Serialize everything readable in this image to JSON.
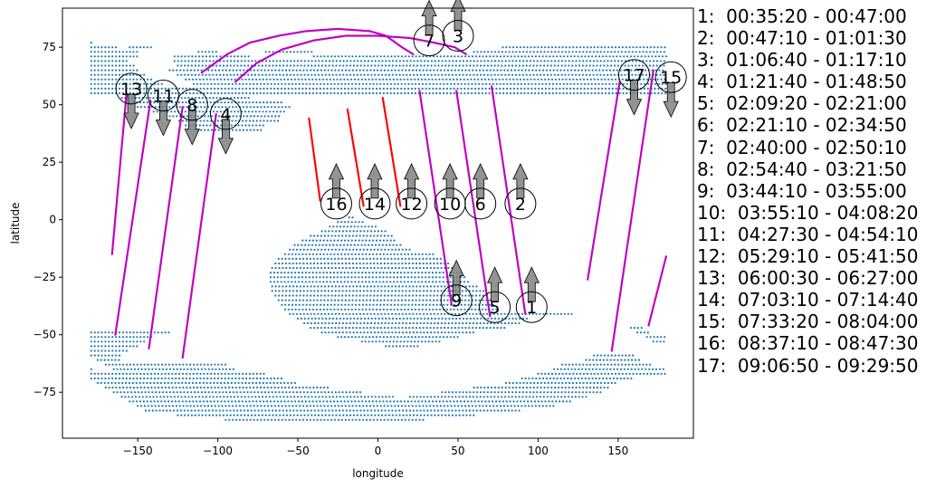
{
  "chart_data": {
    "type": "scatter",
    "xlabel": "longitude",
    "ylabel": "latitude",
    "xlim": [
      -197,
      197
    ],
    "ylim": [
      -95,
      92
    ],
    "xticks": [
      -150,
      -100,
      -50,
      0,
      50,
      100,
      150
    ],
    "yticks": [
      -75,
      -50,
      -25,
      0,
      25,
      50,
      75
    ],
    "colors": {
      "land": "#1f77b4",
      "track": "#bf00bf",
      "track_alt": "#ff0000",
      "arrow": "#808080"
    },
    "land_rows": [
      {
        "lat": 77,
        "segments": [
          [
            -179,
            -179
          ]
        ]
      },
      {
        "lat": 75,
        "segments": [
          [
            -179,
            -163
          ],
          [
            -155,
            -140
          ],
          [
            78,
            180
          ]
        ]
      },
      {
        "lat": 73,
        "segments": [
          [
            -179,
            -150
          ],
          [
            -112,
            -100
          ],
          [
            -70,
            -40
          ],
          [
            60,
            180
          ]
        ]
      },
      {
        "lat": 71,
        "segments": [
          [
            -179,
            -150
          ],
          [
            -127,
            -80
          ],
          [
            -40,
            180
          ]
        ]
      },
      {
        "lat": 69,
        "segments": [
          [
            -179,
            -155
          ],
          [
            -127,
            180
          ]
        ]
      },
      {
        "lat": 67,
        "segments": [
          [
            -179,
            -152
          ],
          [
            -125,
            180
          ]
        ]
      },
      {
        "lat": 65,
        "segments": [
          [
            -179,
            -150
          ],
          [
            -130,
            180
          ]
        ]
      },
      {
        "lat": 63,
        "segments": [
          [
            -179,
            -145
          ],
          [
            -125,
            180
          ]
        ]
      },
      {
        "lat": 61,
        "segments": [
          [
            -179,
            -140
          ],
          [
            -120,
            180
          ]
        ]
      },
      {
        "lat": 59,
        "segments": [
          [
            -179,
            -135
          ],
          [
            -115,
            180
          ]
        ]
      },
      {
        "lat": 57,
        "segments": [
          [
            -179,
            180
          ]
        ]
      },
      {
        "lat": 55,
        "segments": [
          [
            -179,
            180
          ]
        ]
      },
      {
        "lat": 53,
        "segments": [
          [
            -160,
            -80
          ]
        ]
      },
      {
        "lat": 51,
        "segments": [
          [
            -155,
            -60
          ]
        ]
      },
      {
        "lat": 49,
        "segments": [
          [
            -150,
            -55
          ]
        ]
      },
      {
        "lat": 47,
        "segments": [
          [
            -140,
            -58
          ]
        ]
      },
      {
        "lat": 45,
        "segments": [
          [
            -130,
            -60
          ]
        ]
      },
      {
        "lat": 43,
        "segments": [
          [
            -124,
            -62
          ]
        ]
      },
      {
        "lat": 41,
        "segments": [
          [
            -120,
            -70
          ]
        ]
      },
      {
        "lat": 39,
        "segments": [
          [
            -117,
            -72
          ]
        ]
      },
      {
        "lat": 1,
        "segments": [
          [
            -18,
            -15
          ]
        ]
      },
      {
        "lat": -1,
        "segments": [
          [
            -25,
            -8
          ]
        ]
      },
      {
        "lat": -3,
        "segments": [
          [
            -30,
            0
          ]
        ]
      },
      {
        "lat": -5,
        "segments": [
          [
            -35,
            5
          ]
        ]
      },
      {
        "lat": -7,
        "segments": [
          [
            -42,
            10
          ]
        ]
      },
      {
        "lat": -9,
        "segments": [
          [
            -47,
            12
          ]
        ]
      },
      {
        "lat": -11,
        "segments": [
          [
            -52,
            15
          ]
        ]
      },
      {
        "lat": -13,
        "segments": [
          [
            -55,
            20
          ]
        ]
      },
      {
        "lat": -15,
        "segments": [
          [
            -58,
            35
          ]
        ]
      },
      {
        "lat": -17,
        "segments": [
          [
            -62,
            40
          ]
        ]
      },
      {
        "lat": -19,
        "segments": [
          [
            -64,
            45
          ]
        ]
      },
      {
        "lat": -21,
        "segments": [
          [
            -66,
            48
          ]
        ]
      },
      {
        "lat": -23,
        "segments": [
          [
            -67,
            52
          ]
        ]
      },
      {
        "lat": -25,
        "segments": [
          [
            -67,
            55
          ]
        ]
      },
      {
        "lat": -27,
        "segments": [
          [
            -67,
            58
          ]
        ]
      },
      {
        "lat": -29,
        "segments": [
          [
            -66,
            62
          ]
        ]
      },
      {
        "lat": -31,
        "segments": [
          [
            -66,
            66
          ]
        ]
      },
      {
        "lat": -33,
        "segments": [
          [
            -64,
            68
          ]
        ]
      },
      {
        "lat": -35,
        "segments": [
          [
            -62,
            70
          ]
        ]
      },
      {
        "lat": -37,
        "segments": [
          [
            -60,
            72
          ]
        ]
      },
      {
        "lat": -39,
        "segments": [
          [
            -58,
            76
          ]
        ]
      },
      {
        "lat": -41,
        "segments": [
          [
            -55,
            122
          ]
        ]
      },
      {
        "lat": -43,
        "segments": [
          [
            -50,
            95
          ]
        ]
      },
      {
        "lat": -45,
        "segments": [
          [
            -46,
            90
          ]
        ]
      },
      {
        "lat": -47,
        "segments": [
          [
            -42,
            80
          ],
          [
            158,
            165
          ]
        ]
      },
      {
        "lat": -49,
        "segments": [
          [
            -179,
            -130
          ],
          [
            -35,
            60
          ],
          [
            162,
            170
          ]
        ]
      },
      {
        "lat": -51,
        "segments": [
          [
            -179,
            -140
          ],
          [
            -25,
            50
          ],
          [
            168,
            180
          ]
        ]
      },
      {
        "lat": -53,
        "segments": [
          [
            -179,
            -145
          ],
          [
            -10,
            40
          ],
          [
            172,
            180
          ]
        ]
      },
      {
        "lat": -55,
        "segments": [
          [
            -179,
            -150
          ],
          [
            5,
            25
          ]
        ]
      },
      {
        "lat": -57,
        "segments": [
          [
            -179,
            -155
          ]
        ]
      },
      {
        "lat": -59,
        "segments": [
          [
            -179,
            -160
          ],
          [
            135,
            160
          ]
        ]
      },
      {
        "lat": -61,
        "segments": [
          [
            -175,
            -160
          ],
          [
            130,
            165
          ]
        ]
      },
      {
        "lat": -63,
        "segments": [
          [
            -170,
            -95
          ],
          [
            115,
            172
          ]
        ]
      },
      {
        "lat": -65,
        "segments": [
          [
            -179,
            -179
          ],
          [
            -165,
            -90
          ],
          [
            110,
            180
          ]
        ]
      },
      {
        "lat": -67,
        "segments": [
          [
            -179,
            -70
          ],
          [
            100,
            180
          ]
        ]
      },
      {
        "lat": -69,
        "segments": [
          [
            -179,
            -60
          ],
          [
            90,
            160
          ]
        ]
      },
      {
        "lat": -71,
        "segments": [
          [
            -175,
            -50
          ],
          [
            80,
            150
          ]
        ]
      },
      {
        "lat": -73,
        "segments": [
          [
            -170,
            -30
          ],
          [
            60,
            145
          ]
        ]
      },
      {
        "lat": -75,
        "segments": [
          [
            -165,
            -10
          ],
          [
            40,
            140
          ]
        ]
      },
      {
        "lat": -77,
        "segments": [
          [
            -160,
            10
          ],
          [
            20,
            130
          ]
        ]
      },
      {
        "lat": -79,
        "segments": [
          [
            -155,
            120
          ]
        ]
      },
      {
        "lat": -81,
        "segments": [
          [
            -150,
            110
          ]
        ]
      },
      {
        "lat": -83,
        "segments": [
          [
            -145,
            90
          ]
        ]
      },
      {
        "lat": -85,
        "segments": [
          [
            -125,
            60
          ]
        ]
      },
      {
        "lat": -87,
        "segments": [
          [
            -95,
            30
          ]
        ]
      }
    ],
    "tracks": [
      {
        "pts": [
          [
            -166,
            -15
          ],
          [
            -157,
            55
          ]
        ],
        "color": "track"
      },
      {
        "pts": [
          [
            -164,
            -50
          ],
          [
            -142,
            52
          ]
        ],
        "color": "track"
      },
      {
        "pts": [
          [
            -143,
            -56
          ],
          [
            -122,
            49
          ]
        ],
        "color": "track"
      },
      {
        "pts": [
          [
            -122,
            -60
          ],
          [
            -101,
            46
          ]
        ],
        "color": "track"
      },
      {
        "pts": [
          [
            -43,
            44
          ],
          [
            -36,
            8
          ]
        ],
        "color": "track_alt"
      },
      {
        "pts": [
          [
            -19,
            48
          ],
          [
            -9,
            6
          ]
        ],
        "color": "track_alt"
      },
      {
        "pts": [
          [
            3,
            53
          ],
          [
            14,
            6
          ]
        ],
        "color": "track_alt"
      },
      {
        "pts": [
          [
            26,
            56
          ],
          [
            46,
            -37
          ]
        ],
        "color": "track"
      },
      {
        "pts": [
          [
            49,
            56
          ],
          [
            70,
            -42
          ]
        ],
        "color": "track"
      },
      {
        "pts": [
          [
            71,
            58
          ],
          [
            92,
            -41
          ]
        ],
        "color": "track"
      },
      {
        "pts": [
          [
            131,
            -26
          ],
          [
            151,
            60
          ]
        ],
        "color": "track"
      },
      {
        "pts": [
          [
            146,
            -57
          ],
          [
            172,
            65
          ]
        ],
        "color": "track"
      },
      {
        "pts": [
          [
            169,
            -46
          ],
          [
            180,
            -16
          ]
        ],
        "color": "track"
      },
      {
        "pts": [
          [
            -110,
            64
          ],
          [
            -94,
            72
          ],
          [
            -80,
            77
          ],
          [
            -62,
            80
          ],
          [
            -45,
            82
          ],
          [
            -25,
            83
          ],
          [
            -5,
            82
          ],
          [
            5,
            80
          ],
          [
            15,
            75
          ],
          [
            22,
            72
          ]
        ],
        "color": "track"
      },
      {
        "pts": [
          [
            -89,
            60
          ],
          [
            -76,
            68
          ],
          [
            -60,
            74
          ],
          [
            -40,
            78
          ],
          [
            -20,
            80
          ],
          [
            0,
            80
          ],
          [
            20,
            79
          ],
          [
            35,
            77
          ],
          [
            48,
            75
          ],
          [
            55,
            72
          ]
        ],
        "color": "track"
      }
    ],
    "markers": [
      {
        "label": "1",
        "lon": 96,
        "lat": -38,
        "dir": "up"
      },
      {
        "label": "2",
        "lon": 89,
        "lat": 7,
        "dir": "up"
      },
      {
        "label": "3",
        "lon": 50,
        "lat": 80,
        "dir": "up"
      },
      {
        "label": "4",
        "lon": -95,
        "lat": 46,
        "dir": "down"
      },
      {
        "label": "5",
        "lon": 73,
        "lat": -38,
        "dir": "up"
      },
      {
        "label": "6",
        "lon": 64,
        "lat": 7,
        "dir": "up"
      },
      {
        "label": "7",
        "lon": 32,
        "lat": 78,
        "dir": "up"
      },
      {
        "label": "8",
        "lon": -116,
        "lat": 50,
        "dir": "down"
      },
      {
        "label": "9",
        "lon": 49,
        "lat": -35,
        "dir": "up"
      },
      {
        "label": "10",
        "lon": 45,
        "lat": 7,
        "dir": "up"
      },
      {
        "label": "11",
        "lon": -134,
        "lat": 54,
        "dir": "down"
      },
      {
        "label": "12",
        "lon": 21,
        "lat": 7,
        "dir": "up"
      },
      {
        "label": "13",
        "lon": -154,
        "lat": 57,
        "dir": "down"
      },
      {
        "label": "14",
        "lon": -2,
        "lat": 7,
        "dir": "up"
      },
      {
        "label": "15",
        "lon": 183,
        "lat": 62,
        "dir": "down"
      },
      {
        "label": "16",
        "lon": -26,
        "lat": 7,
        "dir": "up"
      },
      {
        "label": "17",
        "lon": 160,
        "lat": 63,
        "dir": "down"
      }
    ],
    "legend_position": "right-outside",
    "legend": [
      "1:  00:35:20 - 00:47:00",
      "2:  00:47:10 - 01:01:30",
      "3:  01:06:40 - 01:17:10",
      "4:  01:21:40 - 01:48:50",
      "5:  02:09:20 - 02:21:00",
      "6:  02:21:10 - 02:34:50",
      "7:  02:40:00 - 02:50:10",
      "8:  02:54:40 - 03:21:50",
      "9:  03:44:10 - 03:55:00",
      "10:  03:55:10 - 04:08:20",
      "11:  04:27:30 - 04:54:10",
      "12:  05:29:10 - 05:41:50",
      "13:  06:00:30 - 06:27:00",
      "14:  07:03:10 - 07:14:40",
      "15:  07:33:20 - 08:04:00",
      "16:  08:37:10 - 08:47:30",
      "17:  09:06:50 - 09:29:50"
    ]
  }
}
